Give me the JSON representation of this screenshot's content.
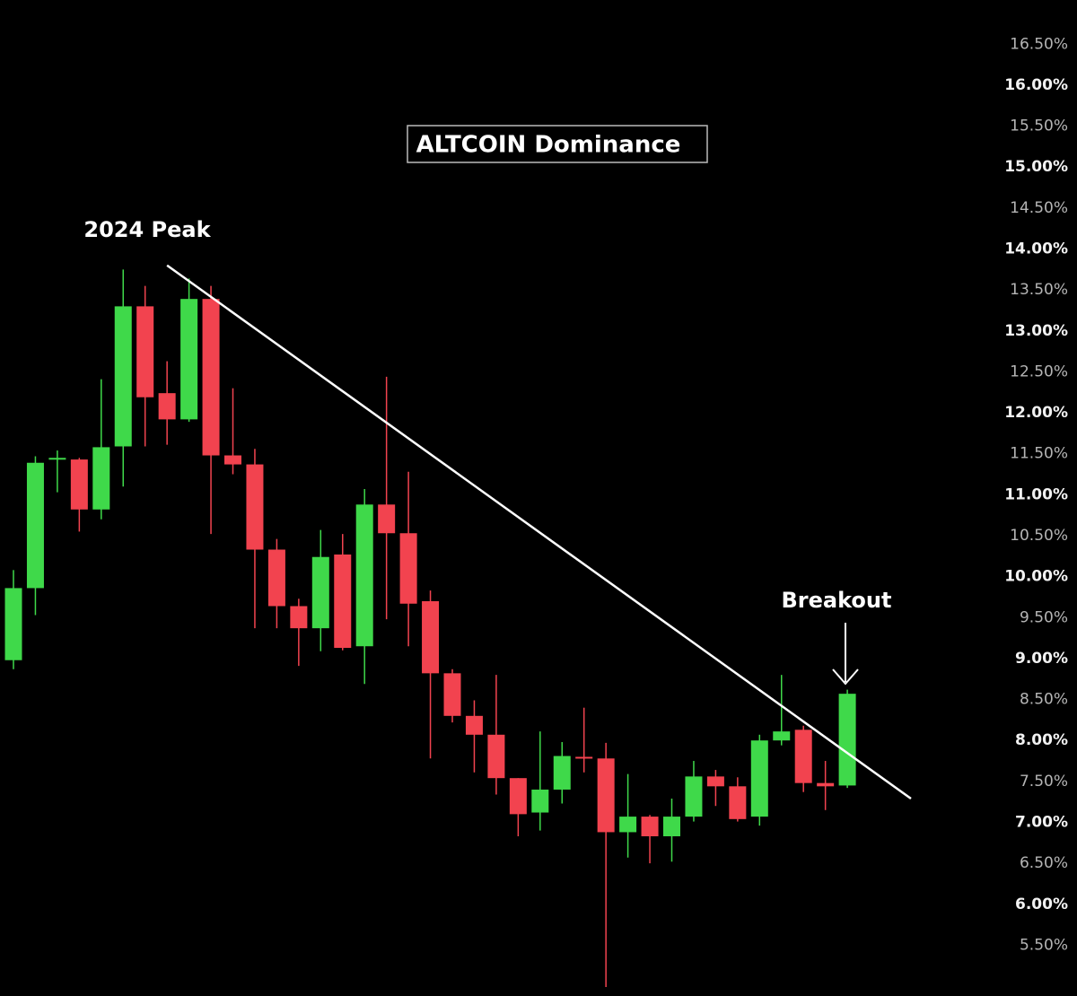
{
  "chart_data": {
    "type": "candlestick",
    "title": "ALTCOIN Dominance",
    "annotations": [
      "2024 Peak",
      "Breakout"
    ],
    "up_color": "#3fd94a",
    "down_color": "#f2434f",
    "open": [
      8.98,
      9.86,
      11.43,
      11.43,
      10.82,
      11.59,
      13.3,
      12.24,
      11.92,
      13.39,
      11.48,
      11.37,
      10.33,
      9.64,
      9.37,
      10.27,
      9.15,
      10.88,
      10.53,
      9.7,
      8.82,
      8.3,
      8.07,
      7.54,
      7.12,
      7.4,
      7.8,
      7.78,
      6.88,
      7.07,
      6.83,
      7.07,
      7.56,
      7.44,
      7.07,
      8.0,
      8.13,
      7.48,
      7.45
    ],
    "high": [
      10.08,
      11.47,
      11.54,
      11.45,
      12.41,
      13.75,
      13.55,
      12.63,
      13.64,
      13.55,
      12.3,
      11.56,
      10.46,
      9.73,
      10.57,
      10.52,
      11.07,
      12.44,
      11.28,
      9.83,
      8.87,
      8.49,
      8.8,
      7.54,
      8.11,
      7.98,
      8.4,
      7.97,
      7.59,
      7.09,
      7.29,
      7.75,
      7.64,
      7.55,
      8.07,
      8.8,
      8.18,
      7.75,
      8.62
    ],
    "low": [
      8.87,
      9.53,
      11.03,
      10.55,
      10.7,
      11.1,
      11.59,
      11.61,
      11.89,
      10.52,
      11.25,
      9.37,
      9.37,
      8.91,
      9.09,
      9.1,
      8.69,
      9.48,
      9.15,
      7.78,
      8.22,
      7.61,
      7.34,
      6.83,
      6.9,
      7.23,
      7.61,
      4.99,
      6.57,
      6.5,
      6.52,
      7.01,
      7.2,
      7.01,
      6.96,
      7.94,
      7.37,
      7.15,
      7.42
    ],
    "close": [
      9.86,
      11.39,
      11.45,
      10.82,
      11.58,
      13.3,
      12.19,
      11.92,
      13.39,
      11.48,
      11.37,
      10.33,
      9.64,
      9.37,
      10.24,
      9.13,
      10.88,
      10.53,
      9.67,
      8.82,
      8.3,
      8.07,
      7.54,
      7.1,
      7.4,
      7.81,
      7.78,
      6.88,
      7.07,
      6.83,
      7.07,
      7.56,
      7.44,
      7.04,
      8.0,
      8.11,
      7.48,
      7.44,
      8.57
    ],
    "trendline": {
      "start": [
        7,
        13.8
      ],
      "end": [
        40.9,
        7.29
      ]
    },
    "ylim": [
      4.88,
      17.04
    ],
    "yticks": [
      {
        "value": 5.5,
        "label": "5.50%"
      },
      {
        "value": 6,
        "label": "6.00%"
      },
      {
        "value": 6.5,
        "label": "6.50%"
      },
      {
        "value": 7,
        "label": "7.00%"
      },
      {
        "value": 7.5,
        "label": "7.50%"
      },
      {
        "value": 8,
        "label": "8.00%"
      },
      {
        "value": 8.5,
        "label": "8.50%"
      },
      {
        "value": 9,
        "label": "9.00%"
      },
      {
        "value": 9.5,
        "label": "9.50%"
      },
      {
        "value": 10,
        "label": "10.00%"
      },
      {
        "value": 10.5,
        "label": "10.50%"
      },
      {
        "value": 11,
        "label": "11.00%"
      },
      {
        "value": 11.5,
        "label": "11.50%"
      },
      {
        "value": 12,
        "label": "12.00%"
      },
      {
        "value": 12.5,
        "label": "12.50%"
      },
      {
        "value": 13,
        "label": "13.00%"
      },
      {
        "value": 13.5,
        "label": "13.50%"
      },
      {
        "value": 14,
        "label": "14.00%"
      },
      {
        "value": 14.5,
        "label": "14.50%"
      },
      {
        "value": 15,
        "label": "15.00%"
      },
      {
        "value": 15.5,
        "label": "15.50%"
      },
      {
        "value": 16,
        "label": "16.00%"
      },
      {
        "value": 16.5,
        "label": "16.50%"
      }
    ]
  }
}
